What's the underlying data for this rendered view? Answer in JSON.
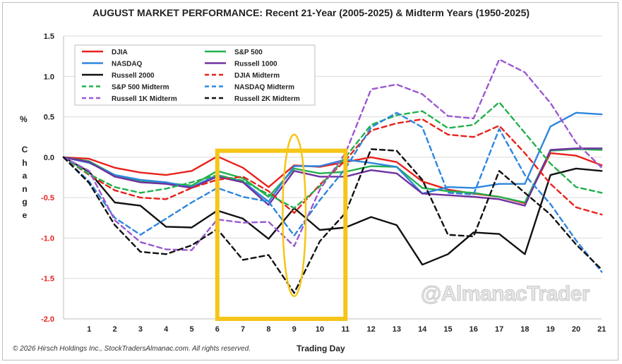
{
  "chart_data": {
    "type": "line",
    "title": "AUGUST MARKET PERFORMANCE: Recent 21-Year (2005-2025) & Midterm Years (1950-2025)",
    "xlabel": "Trading Day",
    "ylabel_symbol": "%",
    "ylabel_word": "Change",
    "xlim": [
      0,
      21
    ],
    "ylim": [
      -2.0,
      1.5
    ],
    "x": [
      0,
      1,
      2,
      3,
      4,
      5,
      6,
      7,
      8,
      9,
      10,
      11,
      12,
      13,
      14,
      15,
      16,
      17,
      18,
      19,
      20,
      21
    ],
    "x_ticks": [
      "1",
      "2",
      "3",
      "4",
      "5",
      "6",
      "7",
      "8",
      "9",
      "10",
      "11",
      "12",
      "13",
      "14",
      "15",
      "16",
      "17",
      "18",
      "19",
      "20",
      "21"
    ],
    "y_ticks": [
      {
        "value": 1.5,
        "label": "1.5"
      },
      {
        "value": 1.0,
        "label": "1.0"
      },
      {
        "value": 0.5,
        "label": "0.5"
      },
      {
        "value": 0.0,
        "label": "0.0"
      },
      {
        "value": -0.5,
        "label": "-0.5"
      },
      {
        "value": -1.0,
        "label": "-1.0"
      },
      {
        "value": -1.5,
        "label": "-1.5"
      },
      {
        "value": -2.0,
        "label": "-2.0"
      }
    ],
    "negative_tick_color": "#e8211c",
    "positive_tick_color": "#222222",
    "grid": "horizontal",
    "legend_position": "top-left",
    "series": [
      {
        "name": "DJIA",
        "color": "#e8211c",
        "dash": "solid",
        "values": [
          0,
          -0.02,
          -0.13,
          -0.19,
          -0.22,
          -0.17,
          0.01,
          -0.13,
          -0.37,
          -0.1,
          -0.12,
          -0.06,
          0.0,
          -0.06,
          -0.3,
          -0.4,
          -0.45,
          -0.49,
          -0.57,
          0.05,
          0.02,
          -0.1
        ]
      },
      {
        "name": "S&P 500",
        "color": "#22b14c",
        "dash": "solid",
        "values": [
          0,
          -0.05,
          -0.22,
          -0.29,
          -0.32,
          -0.35,
          -0.17,
          -0.26,
          -0.49,
          -0.14,
          -0.2,
          -0.18,
          -0.11,
          -0.12,
          -0.38,
          -0.42,
          -0.44,
          -0.49,
          -0.56,
          0.08,
          0.1,
          0.09
        ]
      },
      {
        "name": "NASDAQ",
        "color": "#2e86de",
        "dash": "solid",
        "values": [
          0,
          -0.07,
          -0.22,
          -0.28,
          -0.31,
          -0.37,
          -0.22,
          -0.3,
          -0.55,
          -0.11,
          -0.11,
          -0.03,
          -0.07,
          -0.12,
          -0.45,
          -0.37,
          -0.38,
          -0.33,
          -0.33,
          0.38,
          0.55,
          0.53
        ]
      },
      {
        "name": "Russell 1000",
        "color": "#7030a0",
        "dash": "solid",
        "values": [
          0,
          -0.06,
          -0.24,
          -0.31,
          -0.33,
          -0.38,
          -0.24,
          -0.31,
          -0.59,
          -0.17,
          -0.24,
          -0.24,
          -0.16,
          -0.2,
          -0.45,
          -0.47,
          -0.49,
          -0.52,
          -0.6,
          0.09,
          0.11,
          0.11
        ]
      },
      {
        "name": "Russell 2000",
        "color": "#111111",
        "dash": "solid",
        "values": [
          0,
          -0.18,
          -0.56,
          -0.6,
          -0.86,
          -0.87,
          -0.66,
          -0.76,
          -1.01,
          -0.63,
          -0.9,
          -0.87,
          -0.74,
          -0.84,
          -1.33,
          -1.2,
          -0.93,
          -0.95,
          -1.2,
          -0.22,
          -0.14,
          -0.17
        ]
      },
      {
        "name": "DJIA Midterm",
        "color": "#e8211c",
        "dash": "dashed",
        "values": [
          0,
          -0.22,
          -0.41,
          -0.5,
          -0.52,
          -0.38,
          -0.28,
          -0.24,
          -0.42,
          -0.69,
          -0.34,
          -0.04,
          0.33,
          0.42,
          0.47,
          0.28,
          0.25,
          0.39,
          0.05,
          -0.33,
          -0.62,
          -0.71
        ]
      },
      {
        "name": "S&P 500 Midterm",
        "color": "#22b14c",
        "dash": "dashed",
        "values": [
          0,
          -0.21,
          -0.37,
          -0.44,
          -0.39,
          -0.31,
          -0.22,
          -0.29,
          -0.46,
          -0.63,
          -0.36,
          0.0,
          0.4,
          0.52,
          0.57,
          0.36,
          0.4,
          0.68,
          0.3,
          -0.08,
          -0.37,
          -0.44
        ]
      },
      {
        "name": "NASDAQ Midterm",
        "color": "#2e86de",
        "dash": "dashed",
        "values": [
          0,
          -0.3,
          -0.75,
          -0.96,
          -0.76,
          -0.56,
          -0.38,
          -0.49,
          -0.55,
          -0.97,
          -0.53,
          -0.14,
          0.37,
          0.55,
          0.37,
          -0.44,
          -0.46,
          0.35,
          -0.22,
          -0.58,
          -1.03,
          -1.42
        ]
      },
      {
        "name": "Russell 1K Midterm",
        "color": "#9b59d0",
        "dash": "dashed",
        "values": [
          0,
          -0.17,
          -0.78,
          -1.05,
          -1.14,
          -1.15,
          -0.77,
          -0.81,
          -0.8,
          -1.1,
          -0.4,
          0.05,
          0.84,
          0.9,
          0.78,
          0.51,
          0.48,
          1.21,
          1.05,
          0.67,
          0.18,
          -0.13
        ]
      },
      {
        "name": "Russell 2K Midterm",
        "color": "#111111",
        "dash": "dashed",
        "values": [
          0,
          -0.32,
          -0.84,
          -1.17,
          -1.2,
          -1.09,
          -0.89,
          -1.27,
          -1.21,
          -1.68,
          -1.04,
          -0.69,
          0.1,
          0.08,
          -0.28,
          -0.96,
          -0.98,
          -0.17,
          -0.44,
          -0.71,
          -1.08,
          -1.39
        ]
      }
    ],
    "annotations": [
      {
        "shape": "rectangle",
        "color": "#f5c518",
        "x_range": [
          6,
          11
        ],
        "y_range": [
          -2.0,
          0.08
        ]
      },
      {
        "shape": "ellipse",
        "color": "#f5c518",
        "x_center": 9,
        "y_center": -0.72,
        "x_halfwidth": 0.45,
        "y_halfwidth": 1.0
      }
    ]
  },
  "footer": {
    "copyright": "© 2026 Hirsch Holdings Inc., StockTradersAlmanac.com. All rights reserved.",
    "watermark": "@AlmanacTrader"
  }
}
